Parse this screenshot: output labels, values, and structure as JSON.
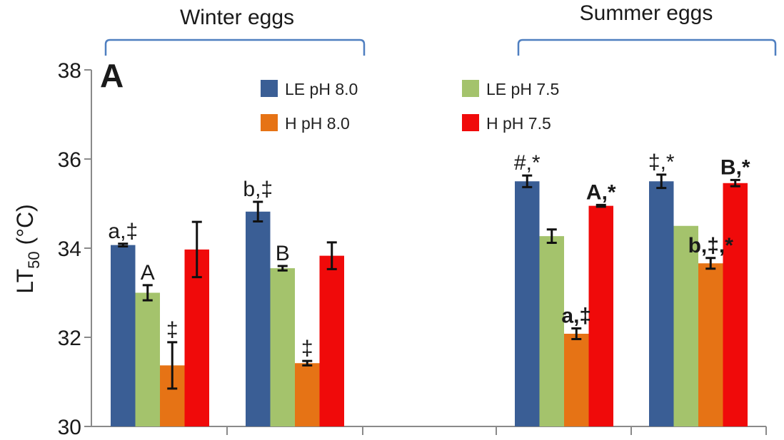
{
  "chart_data": {
    "type": "bar",
    "panel_label": "A",
    "ylabel_main": "LT",
    "ylabel_sub": "50",
    "ylabel_unit": " (°C)",
    "ylim": [
      30,
      38
    ],
    "yticks": [
      "30",
      "32",
      "34",
      "36",
      "38"
    ],
    "group_labels": [
      "Winter eggs",
      "Summer eggs"
    ],
    "series": [
      {
        "name": "LE pH 8.0",
        "color": "#3a5e95"
      },
      {
        "name": "LE pH 7.5",
        "color": "#a4c36c"
      },
      {
        "name": "H pH 8.0",
        "color": "#e67315"
      },
      {
        "name": "H pH 7.5",
        "color": "#f00a0a"
      }
    ],
    "clusters": [
      {
        "group": "Winter eggs",
        "bars": [
          {
            "series": "LE pH 8.0",
            "value": 34.07,
            "error": 0.03,
            "annotation": "a,‡",
            "bold": false
          },
          {
            "series": "LE pH 7.5",
            "value": 33.0,
            "error": 0.17,
            "annotation": "A",
            "bold": false
          },
          {
            "series": "H pH 8.0",
            "value": 31.37,
            "error": 0.52,
            "annotation": "‡",
            "bold": false
          },
          {
            "series": "H pH 7.5",
            "value": 33.97,
            "error": 0.62,
            "annotation": "",
            "bold": false
          }
        ]
      },
      {
        "group": "Winter eggs",
        "bars": [
          {
            "series": "LE pH 8.0",
            "value": 34.82,
            "error": 0.22,
            "annotation": "b,‡",
            "bold": false
          },
          {
            "series": "LE pH 7.5",
            "value": 33.55,
            "error": 0.05,
            "annotation": "B",
            "bold": false
          },
          {
            "series": "H pH 8.0",
            "value": 31.42,
            "error": 0.05,
            "annotation": "‡",
            "bold": false
          },
          {
            "series": "H pH 7.5",
            "value": 33.83,
            "error": 0.3,
            "annotation": "",
            "bold": false
          }
        ]
      },
      {
        "group": "Summer eggs",
        "bars": [
          {
            "series": "LE pH 8.0",
            "value": 35.5,
            "error": 0.13,
            "annotation": "#,*",
            "bold": false
          },
          {
            "series": "LE pH 7.5",
            "value": 34.27,
            "error": 0.15,
            "annotation": "",
            "bold": false
          },
          {
            "series": "H pH 8.0",
            "value": 32.08,
            "error": 0.12,
            "annotation": "a,‡",
            "bold": true
          },
          {
            "series": "H pH 7.5",
            "value": 34.95,
            "error": 0.02,
            "annotation": "A,*",
            "bold": true
          }
        ]
      },
      {
        "group": "Summer eggs",
        "bars": [
          {
            "series": "LE pH 8.0",
            "value": 35.5,
            "error": 0.15,
            "annotation": "‡,*",
            "bold": false
          },
          {
            "series": "LE pH 7.5",
            "value": 34.5,
            "error": 0.0,
            "annotation": "",
            "bold": false
          },
          {
            "series": "H pH 8.0",
            "value": 33.66,
            "error": 0.12,
            "annotation": "b,‡,*",
            "bold": true
          },
          {
            "series": "H pH 7.5",
            "value": 35.46,
            "error": 0.07,
            "annotation": "B,*",
            "bold": true
          }
        ]
      }
    ],
    "legend_placement": "top-center",
    "grid": false
  }
}
